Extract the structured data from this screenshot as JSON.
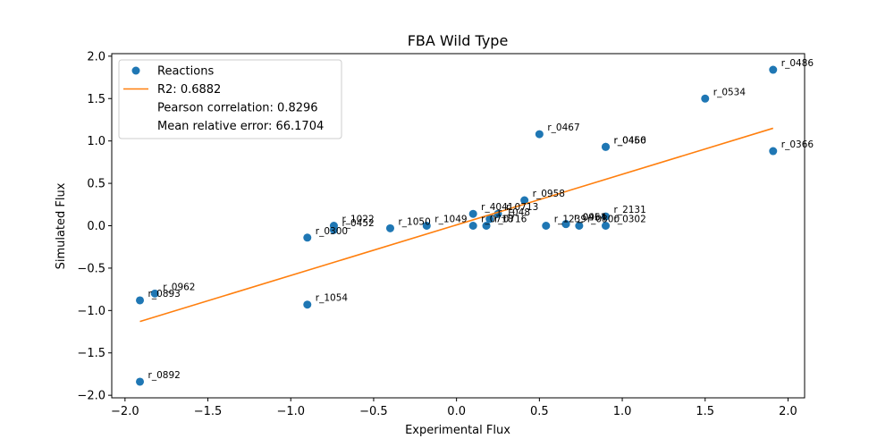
{
  "chart_data": {
    "type": "scatter",
    "title": "FBA Wild Type",
    "xlabel": "Experimental Flux",
    "ylabel": "Simulated Flux",
    "xlim": [
      -2.08,
      2.1
    ],
    "ylim": [
      -2.03,
      2.03
    ],
    "xticks": [
      -2.0,
      -1.5,
      -1.0,
      -0.5,
      0.0,
      0.5,
      1.0,
      1.5,
      2.0
    ],
    "yticks": [
      -2.0,
      -1.5,
      -1.0,
      -0.5,
      0.0,
      0.5,
      1.0,
      1.5,
      2.0
    ],
    "xtick_labels": [
      "−2.0",
      "−1.5",
      "−1.0",
      "−0.5",
      "0.0",
      "0.5",
      "1.0",
      "1.5",
      "2.0"
    ],
    "ytick_labels": [
      "−2.0",
      "−1.5",
      "−1.0",
      "−0.5",
      "0.0",
      "0.5",
      "1.0",
      "1.5",
      "2.0"
    ],
    "grid": false,
    "legend_position": "top-left",
    "colors": {
      "points": "#1f77b4",
      "fit": "#ff7f0e"
    },
    "series": [
      {
        "name": "Reactions",
        "kind": "scatter",
        "points": [
          {
            "x": 1.91,
            "y": 1.84,
            "label": "r_0486"
          },
          {
            "x": 1.5,
            "y": 1.5,
            "label": "r_0534"
          },
          {
            "x": 0.5,
            "y": 1.08,
            "label": "r_0467"
          },
          {
            "x": 0.9,
            "y": 0.93,
            "label": "r_0466"
          },
          {
            "x": 0.9,
            "y": 0.93,
            "label": "r_0450"
          },
          {
            "x": 1.91,
            "y": 0.88,
            "label": "r_0366"
          },
          {
            "x": 0.41,
            "y": 0.3,
            "label": "r_0958"
          },
          {
            "x": 0.1,
            "y": 0.14,
            "label": "r_4041"
          },
          {
            "x": 0.25,
            "y": 0.14,
            "label": "r_0713"
          },
          {
            "x": 0.2,
            "y": 0.08,
            "label": "r_1048"
          },
          {
            "x": 0.9,
            "y": 0.11,
            "label": "r_2131"
          },
          {
            "x": 0.9,
            "y": 0.0,
            "label": "r_0302"
          },
          {
            "x": 0.66,
            "y": 0.02,
            "label": "r_0961"
          },
          {
            "x": 0.66,
            "y": 0.02,
            "label": "r_0454"
          },
          {
            "x": 0.74,
            "y": 0.0,
            "label": "r_0300"
          },
          {
            "x": 0.54,
            "y": 0.0,
            "label": "r_1239"
          },
          {
            "x": 0.18,
            "y": 0.0,
            "label": "r_0716"
          },
          {
            "x": 0.1,
            "y": 0.0,
            "label": "r_0718"
          },
          {
            "x": -0.18,
            "y": 0.0,
            "label": "r_1049"
          },
          {
            "x": -0.4,
            "y": -0.03,
            "label": "r_1050"
          },
          {
            "x": -0.74,
            "y": 0.0,
            "label": "r_1022"
          },
          {
            "x": -0.74,
            "y": -0.05,
            "label": "r_0452"
          },
          {
            "x": -0.9,
            "y": -0.14,
            "label": "r_0300"
          },
          {
            "x": -1.82,
            "y": -0.8,
            "label": "r_0962"
          },
          {
            "x": -1.91,
            "y": -0.88,
            "label": "r_0893"
          },
          {
            "x": -0.9,
            "y": -0.93,
            "label": "r_1054"
          },
          {
            "x": -1.91,
            "y": -1.84,
            "label": "r_0892"
          }
        ]
      },
      {
        "name": "R2: 0.6882",
        "kind": "line",
        "x": [
          -1.91,
          1.91
        ],
        "y": [
          -1.13,
          1.15
        ]
      }
    ],
    "legend_entries": [
      "Reactions",
      "R2: 0.6882",
      "Pearson correlation: 0.8296",
      "Mean relative error: 66.1704"
    ]
  }
}
